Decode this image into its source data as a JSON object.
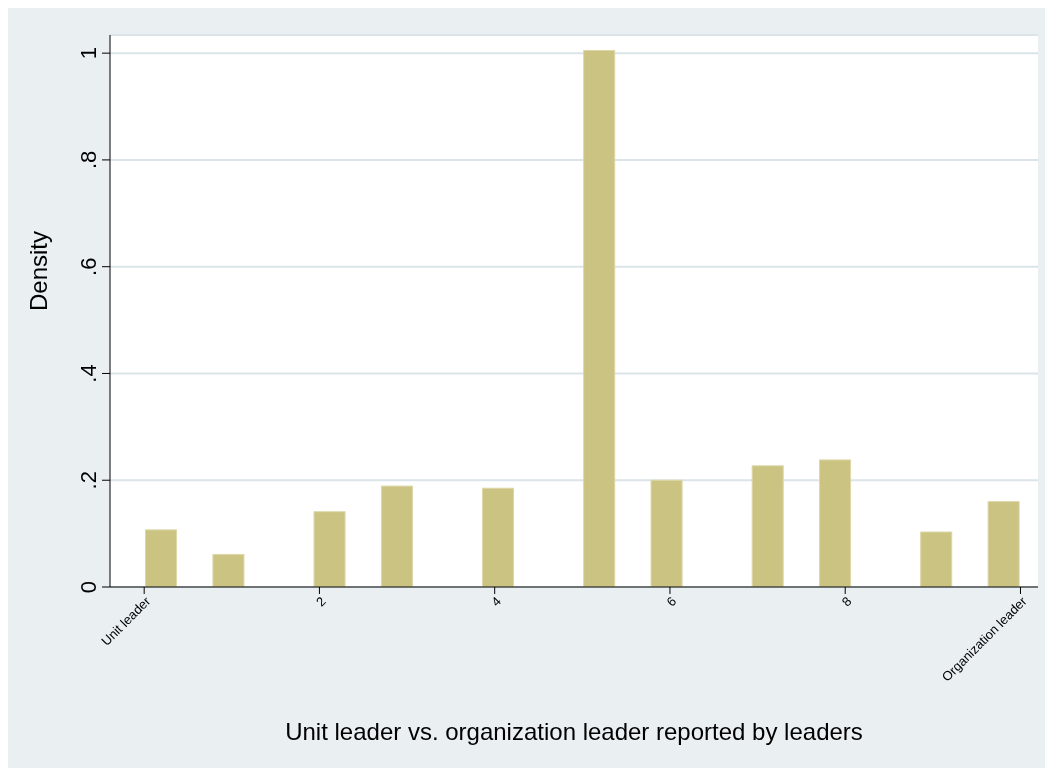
{
  "chart_data": {
    "type": "histogram",
    "xlabel": "Unit leader vs. organization leader reported by leaders",
    "ylabel": "Density",
    "bins": [
      0,
      0.385,
      0.769,
      1.154,
      1.538,
      1.923,
      2.308,
      2.692,
      3.077,
      3.462,
      3.846,
      4.231,
      4.615,
      5,
      5.385,
      5.769,
      6.154,
      6.538,
      6.923,
      7.308,
      7.692,
      8.077,
      8.462,
      8.846,
      9.231,
      9.615,
      10
    ],
    "values": [
      0.107,
      0,
      0.061,
      0,
      0,
      0.141,
      0,
      0.189,
      0,
      0,
      0.185,
      0,
      0,
      1.005,
      0,
      0.2,
      0,
      0,
      0.227,
      0,
      0.238,
      0,
      0,
      0.103,
      0,
      0.16
    ],
    "color": "#cbc382",
    "xlim": [
      -0.39,
      10.2
    ],
    "xticks": [
      {
        "value": 0,
        "label": "Unit leader"
      },
      2,
      4,
      6,
      8,
      {
        "value": 10,
        "label": "Organization leader"
      }
    ],
    "ylim": [
      0,
      1.034
    ],
    "yticks": [
      0,
      {
        "value": 0.2,
        "label": ".2"
      },
      {
        "value": 0.4,
        "label": ".4"
      },
      {
        "value": 0.6,
        "label": ".6"
      },
      {
        "value": 0.8,
        "label": ".8"
      },
      1
    ],
    "grid": "y"
  }
}
